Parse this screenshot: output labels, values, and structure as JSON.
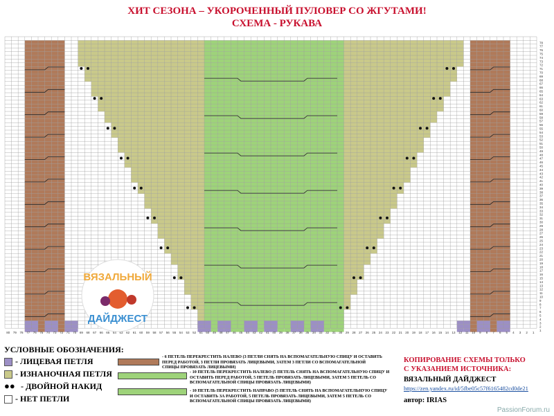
{
  "header": {
    "title": "ХИТ СЕЗОНА – УКОРОЧЕННЫЙ ПУЛОВЕР СО ЖГУТАМИ!",
    "subtitle": "СХЕМА - РУКАВА"
  },
  "legend": {
    "title": "УСЛОВНЫЕ ОБОЗНАЧЕНИЯ:",
    "items": [
      {
        "symbol": "purple",
        "label": "- ЛИЦЕВАЯ ПЕТЛЯ"
      },
      {
        "symbol": "olive",
        "label": "- ИЗНАНОЧНАЯ ПЕТЛЯ"
      },
      {
        "symbol": "dots",
        "label": "- ДВОЙНОЙ НАКИД"
      },
      {
        "symbol": "white",
        "label": "- НЕТ ПЕТЛИ"
      }
    ]
  },
  "cables": [
    {
      "color": "#b07a5a",
      "text": "- 6 ПЕТЕЛЬ ПЕРЕКРЕСТИТЬ НАЛЕВО (3 ПЕТЛИ СНЯТЬ НА ВСПОМАГАТЕЛЬНУЮ СПИЦУ И ОСТАВИТЬ ПЕРЕД РАБОТОЙ, 3 ПЕТЛИ ПРОВЯЗАТЬ ЛИЦЕВЫМИ, ЗАТЕМ 3 ПЕТЛИ СО ВСПОМАГАТЕЛЬНОЙ СПИЦЫ ПРОВЯЗАТЬ ЛИЦЕВЫМИ)"
    },
    {
      "color": "#9ed37a",
      "text": "- 10 ПЕТЕЛЬ ПЕРЕКРЕСТИТЬ НАЛЕВО (5 ПЕТЕЛЬ СНЯТЬ НА ВСПОМАГАТЕЛЬНУЮ СПИЦУ И ОСТАВИТЬ ПЕРЕД РАБОТОЙ, 5 ПЕТЕЛЬ ПРОВЯЗАТЬ ЛИЦЕВЫМИ, ЗАТЕМ 5 ПЕТЕЛЬ СО ВСПОМАГАТЕЛЬНОЙ СПИЦЫ ПРОВЯЗАТЬ ЛИЦЕВЫМИ)"
    },
    {
      "color": "#9ed37a",
      "text": "- 10 ПЕТЕЛЬ ПЕРЕКРЕСТИТЬ НАПРАВО (5 ПЕТЕЛЬ СНЯТЬ НА ВСПОМАГАТЕЛЬНУЮ СПИЦУ И ОСТАВИТЬ ЗА РАБОТОЙ, 5 ПЕТЕЛЬ ПРОВЯЗАТЬ ЛИЦЕВЫМИ, ЗАТЕМ 5 ПЕТЕЛЬ СО ВСПОМАГАТЕЛЬНОЙ СПИЦЫ ПРОВЯЗАТЬ ЛИЦЕВЫМИ)"
    }
  ],
  "copyright": {
    "line1": "КОПИРОВАНИЕ СХЕМЫ ТОЛЬКО",
    "line2": "С УКАЗАНИЕМ ИСТОЧНИКА:",
    "source": "ВЯЗАЛЬНЫЙ ДАЙДЖЕСТ",
    "link": "https://zen.yandex.ru/id/5fbe05c57f6165482cd0de21",
    "author": "автор: IRIAS"
  },
  "logo": {
    "line1": "ВЯЗАЛЬНЫЙ",
    "line2": "ДАЙДЖЕСТ"
  },
  "watermark": "PassionForum.ru",
  "grid": {
    "columns": 80,
    "rows": 80
  },
  "colors": {
    "title": "#c8102e",
    "purple": "#9c8fc5",
    "olive": "#c9c98a",
    "brown": "#b07a5a",
    "green": "#9ed37a"
  }
}
